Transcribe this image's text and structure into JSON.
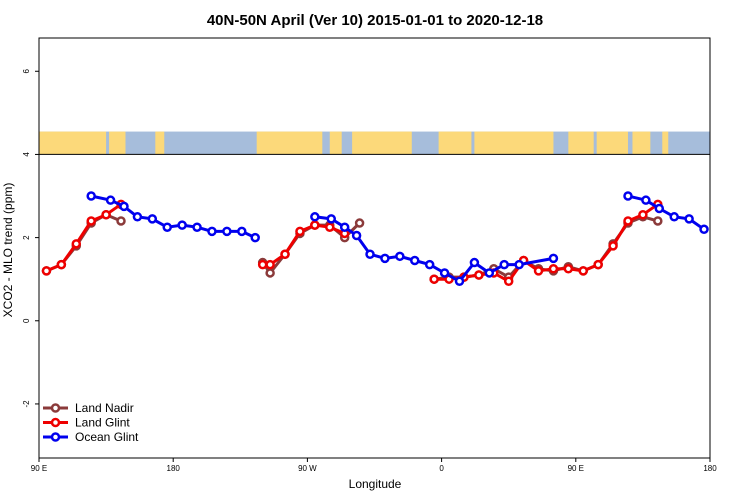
{
  "chart_data": {
    "type": "line",
    "title": "40N-50N April (Ver 10)   2015-01-01 to 2020-12-18",
    "xlabel": "Longitude",
    "ylabel": "XCO2 - MLO trend (ppm)",
    "xlim": [
      0,
      450
    ],
    "ylim": [
      -3.3,
      6.8
    ],
    "x_ticks": [
      {
        "value": 0,
        "label": "90 E"
      },
      {
        "value": 90,
        "label": "180"
      },
      {
        "value": 180,
        "label": "90 W"
      },
      {
        "value": 270,
        "label": "0"
      },
      {
        "value": 360,
        "label": "90 E"
      },
      {
        "value": 450,
        "label": "180"
      }
    ],
    "y_ticks": [
      {
        "value": -2,
        "label": "-2"
      },
      {
        "value": 0,
        "label": "0"
      },
      {
        "value": 2,
        "label": "2"
      },
      {
        "value": 4,
        "label": "4"
      },
      {
        "value": 6,
        "label": "6"
      }
    ],
    "map_band": {
      "y_range": [
        4.0,
        4.55
      ],
      "ocean_color": "#a6bddb",
      "land_color": "#fcd97a"
    },
    "legend_position": "bottom-left",
    "series": [
      {
        "name": "Land Nadir",
        "color": "#8b3a3a",
        "segments": [
          [
            [
              5,
              1.2
            ],
            [
              15,
              1.35
            ],
            [
              25,
              1.8
            ],
            [
              35,
              2.35
            ],
            [
              45,
              2.55
            ],
            [
              55,
              2.4
            ]
          ],
          [
            [
              150,
              1.4
            ],
            [
              155,
              1.15
            ],
            [
              165,
              1.6
            ],
            [
              175,
              2.1
            ],
            [
              185,
              2.3
            ],
            [
              195,
              2.3
            ],
            [
              205,
              2.0
            ],
            [
              215,
              2.35
            ]
          ],
          [
            [
              265,
              1.0
            ],
            [
              275,
              1.05
            ],
            [
              285,
              1.05
            ],
            [
              295,
              1.1
            ],
            [
              305,
              1.25
            ],
            [
              315,
              1.05
            ],
            [
              325,
              1.45
            ],
            [
              335,
              1.25
            ],
            [
              345,
              1.2
            ],
            [
              355,
              1.3
            ],
            [
              365,
              1.2
            ],
            [
              375,
              1.35
            ],
            [
              385,
              1.85
            ],
            [
              395,
              2.35
            ],
            [
              405,
              2.5
            ],
            [
              415,
              2.4
            ]
          ]
        ]
      },
      {
        "name": "Land Glint",
        "color": "#ee0000",
        "segments": [
          [
            [
              5,
              1.2
            ],
            [
              15,
              1.35
            ],
            [
              25,
              1.85
            ],
            [
              35,
              2.4
            ],
            [
              45,
              2.55
            ],
            [
              55,
              2.8
            ]
          ],
          [
            [
              150,
              1.35
            ],
            [
              155,
              1.35
            ],
            [
              165,
              1.6
            ],
            [
              175,
              2.15
            ],
            [
              185,
              2.3
            ],
            [
              195,
              2.25
            ],
            [
              205,
              2.1
            ]
          ],
          [
            [
              265,
              1.0
            ],
            [
              275,
              1.0
            ],
            [
              285,
              1.05
            ],
            [
              295,
              1.1
            ],
            [
              305,
              1.15
            ],
            [
              315,
              0.95
            ],
            [
              325,
              1.45
            ],
            [
              335,
              1.2
            ],
            [
              345,
              1.25
            ],
            [
              355,
              1.25
            ],
            [
              365,
              1.2
            ],
            [
              375,
              1.35
            ],
            [
              385,
              1.8
            ],
            [
              395,
              2.4
            ],
            [
              405,
              2.55
            ],
            [
              415,
              2.8
            ]
          ]
        ]
      },
      {
        "name": "Ocean Glint",
        "color": "#0000ee",
        "segments": [
          [
            [
              35,
              3.0
            ],
            [
              48,
              2.9
            ],
            [
              57,
              2.75
            ],
            [
              66,
              2.5
            ],
            [
              76,
              2.45
            ],
            [
              86,
              2.25
            ],
            [
              96,
              2.3
            ],
            [
              106,
              2.25
            ],
            [
              116,
              2.15
            ],
            [
              126,
              2.15
            ],
            [
              136,
              2.15
            ],
            [
              145,
              2.0
            ]
          ],
          [
            [
              185,
              2.5
            ],
            [
              196,
              2.45
            ],
            [
              205,
              2.25
            ],
            [
              213,
              2.05
            ],
            [
              222,
              1.6
            ],
            [
              232,
              1.5
            ],
            [
              242,
              1.55
            ],
            [
              252,
              1.45
            ],
            [
              262,
              1.35
            ],
            [
              272,
              1.15
            ],
            [
              282,
              0.95
            ],
            [
              292,
              1.4
            ],
            [
              302,
              1.15
            ],
            [
              312,
              1.35
            ],
            [
              322,
              1.35
            ],
            [
              345,
              1.5
            ]
          ],
          [
            [
              395,
              3.0
            ],
            [
              407,
              2.9
            ],
            [
              416,
              2.7
            ],
            [
              426,
              2.5
            ],
            [
              436,
              2.45
            ],
            [
              446,
              2.2
            ]
          ]
        ]
      }
    ]
  }
}
